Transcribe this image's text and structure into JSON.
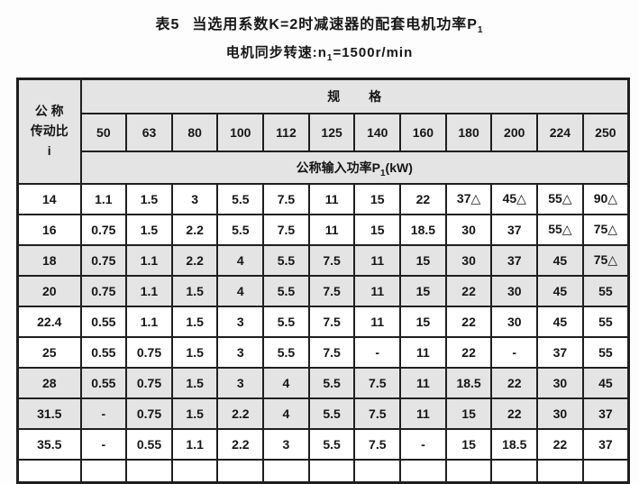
{
  "colors": {
    "page_background": "#fdfdfd",
    "shaded_row": "#e4e4e4",
    "plain_row": "#ffffff",
    "border": "#1f1f1f",
    "text": "#161616"
  },
  "title": {
    "table_no": "表5",
    "text": "当选用系数K=2时减速器的配套电机功率P",
    "subscript": "1"
  },
  "subtitle": {
    "prefix": "电机同步转速:n",
    "subscript": "1",
    "suffix": "=1500r/min"
  },
  "table": {
    "corner_header": "公 称\n传动比\ni",
    "spec_header": "规 格",
    "power_header": {
      "prefix": "公称输入功率P",
      "subscript": "1",
      "suffix": "(kW)"
    },
    "columns": [
      "50",
      "63",
      "80",
      "100",
      "112",
      "125",
      "140",
      "160",
      "180",
      "200",
      "224",
      "250"
    ],
    "rows": [
      {
        "ratio": "14",
        "shaded": false,
        "values": [
          "1.1",
          "1.5",
          "3",
          "5.5",
          "7.5",
          "11",
          "15",
          "22",
          "37△",
          "45△",
          "55△",
          "90△"
        ]
      },
      {
        "ratio": "16",
        "shaded": false,
        "values": [
          "0.75",
          "1.5",
          "2.2",
          "5.5",
          "7.5",
          "11",
          "15",
          "18.5",
          "30",
          "37",
          "55△",
          "75△"
        ]
      },
      {
        "ratio": "18",
        "shaded": true,
        "values": [
          "0.75",
          "1.1",
          "2.2",
          "4",
          "5.5",
          "7.5",
          "11",
          "15",
          "30",
          "37",
          "45",
          "75△"
        ]
      },
      {
        "ratio": "20",
        "shaded": true,
        "values": [
          "0.75",
          "1.1",
          "1.5",
          "4",
          "5.5",
          "7.5",
          "11",
          "15",
          "22",
          "30",
          "45",
          "55"
        ]
      },
      {
        "ratio": "22.4",
        "shaded": false,
        "values": [
          "0.55",
          "1.1",
          "1.5",
          "3",
          "5.5",
          "7.5",
          "11",
          "15",
          "22",
          "30",
          "45",
          "55"
        ]
      },
      {
        "ratio": "25",
        "shaded": false,
        "values": [
          "0.55",
          "0.75",
          "1.5",
          "3",
          "5.5",
          "7.5",
          "-",
          "11",
          "22",
          "-",
          "37",
          "55"
        ]
      },
      {
        "ratio": "28",
        "shaded": true,
        "values": [
          "0.55",
          "0.75",
          "1.5",
          "3",
          "4",
          "5.5",
          "7.5",
          "11",
          "18.5",
          "22",
          "30",
          "45"
        ]
      },
      {
        "ratio": "31.5",
        "shaded": true,
        "values": [
          "-",
          "0.75",
          "1.5",
          "2.2",
          "4",
          "5.5",
          "7.5",
          "11",
          "15",
          "22",
          "30",
          "37"
        ]
      },
      {
        "ratio": "35.5",
        "shaded": false,
        "values": [
          "-",
          "0.55",
          "1.1",
          "2.2",
          "3",
          "5.5",
          "7.5",
          "-",
          "15",
          "18.5",
          "22",
          "37"
        ]
      }
    ]
  }
}
